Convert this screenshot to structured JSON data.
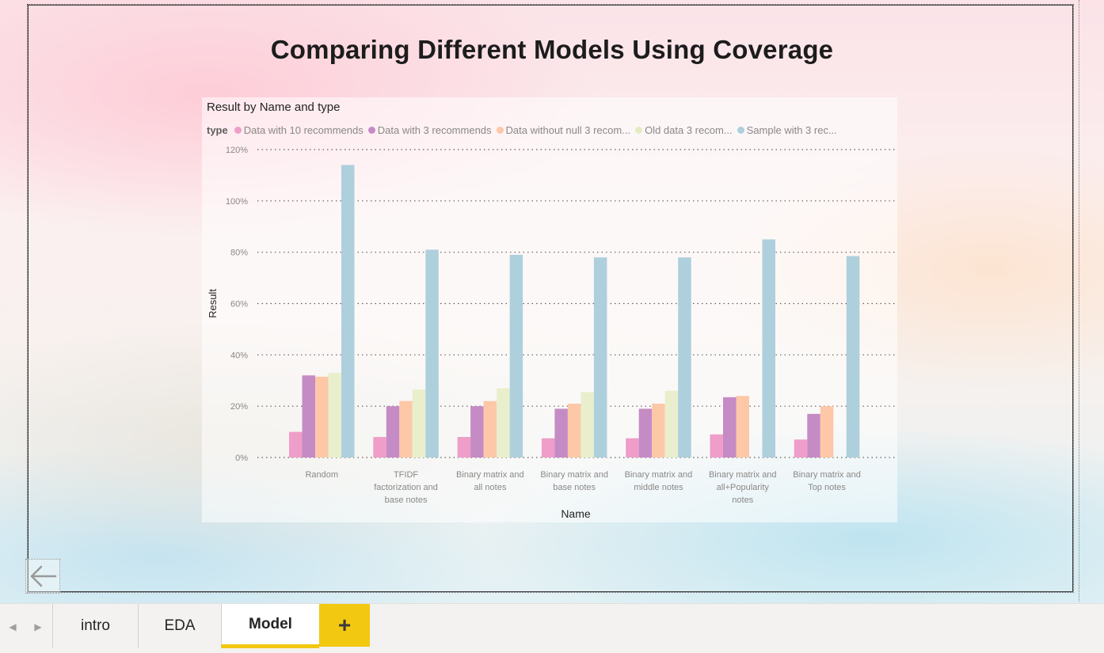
{
  "page": {
    "title": "Comparing Different Models Using Coverage"
  },
  "visual": {
    "title": "Result by Name and type",
    "legend_title": "type",
    "legend_items": [
      "Data with 10 recommends",
      "Data with 3 recommends",
      "Data without null 3 recom...",
      "Old data  3 recom...",
      "Sample with 3 rec..."
    ]
  },
  "chart_data": {
    "type": "bar",
    "title": "Result by Name and type",
    "xlabel": "Name",
    "ylabel": "Result",
    "ylim": [
      0,
      120
    ],
    "yticks": [
      "0%",
      "20%",
      "40%",
      "60%",
      "80%",
      "100%",
      "120%"
    ],
    "grid": true,
    "legend_position": "top-left",
    "categories": [
      "Random",
      "TFIDF factorization and base notes",
      "Binary matrix and all notes",
      "Binary matrix and base notes",
      "Binary matrix and middle notes",
      "Binary matrix and all+Popularity notes",
      "Binary matrix and Top notes"
    ],
    "series": [
      {
        "name": "Data with 10 recommends",
        "color": "#ee9ec8",
        "values": [
          10,
          8,
          8,
          7.5,
          7.5,
          9,
          7
        ]
      },
      {
        "name": "Data with 3 recommends",
        "color": "#c58bc4",
        "values": [
          32,
          20,
          20,
          19,
          19,
          23.5,
          17
        ]
      },
      {
        "name": "Data without null 3 recom...",
        "color": "#fdc8a8",
        "values": [
          31.5,
          22,
          22,
          21,
          21,
          24,
          20
        ]
      },
      {
        "name": "Old data  3 recom...",
        "color": "#e9efcc",
        "values": [
          33,
          26.5,
          27,
          25.5,
          26,
          null,
          null
        ]
      },
      {
        "name": "Sample with 3 rec...",
        "color": "#aecfdc",
        "values": [
          114,
          81,
          79,
          78,
          78,
          85,
          78.5
        ]
      }
    ]
  },
  "tabs": {
    "items": [
      "intro",
      "EDA",
      "Model"
    ],
    "active": "Model",
    "add_label": "+"
  },
  "icons": {
    "back": "arrow-left-icon",
    "prev": "triangle-left-icon",
    "next": "triangle-right-icon"
  }
}
